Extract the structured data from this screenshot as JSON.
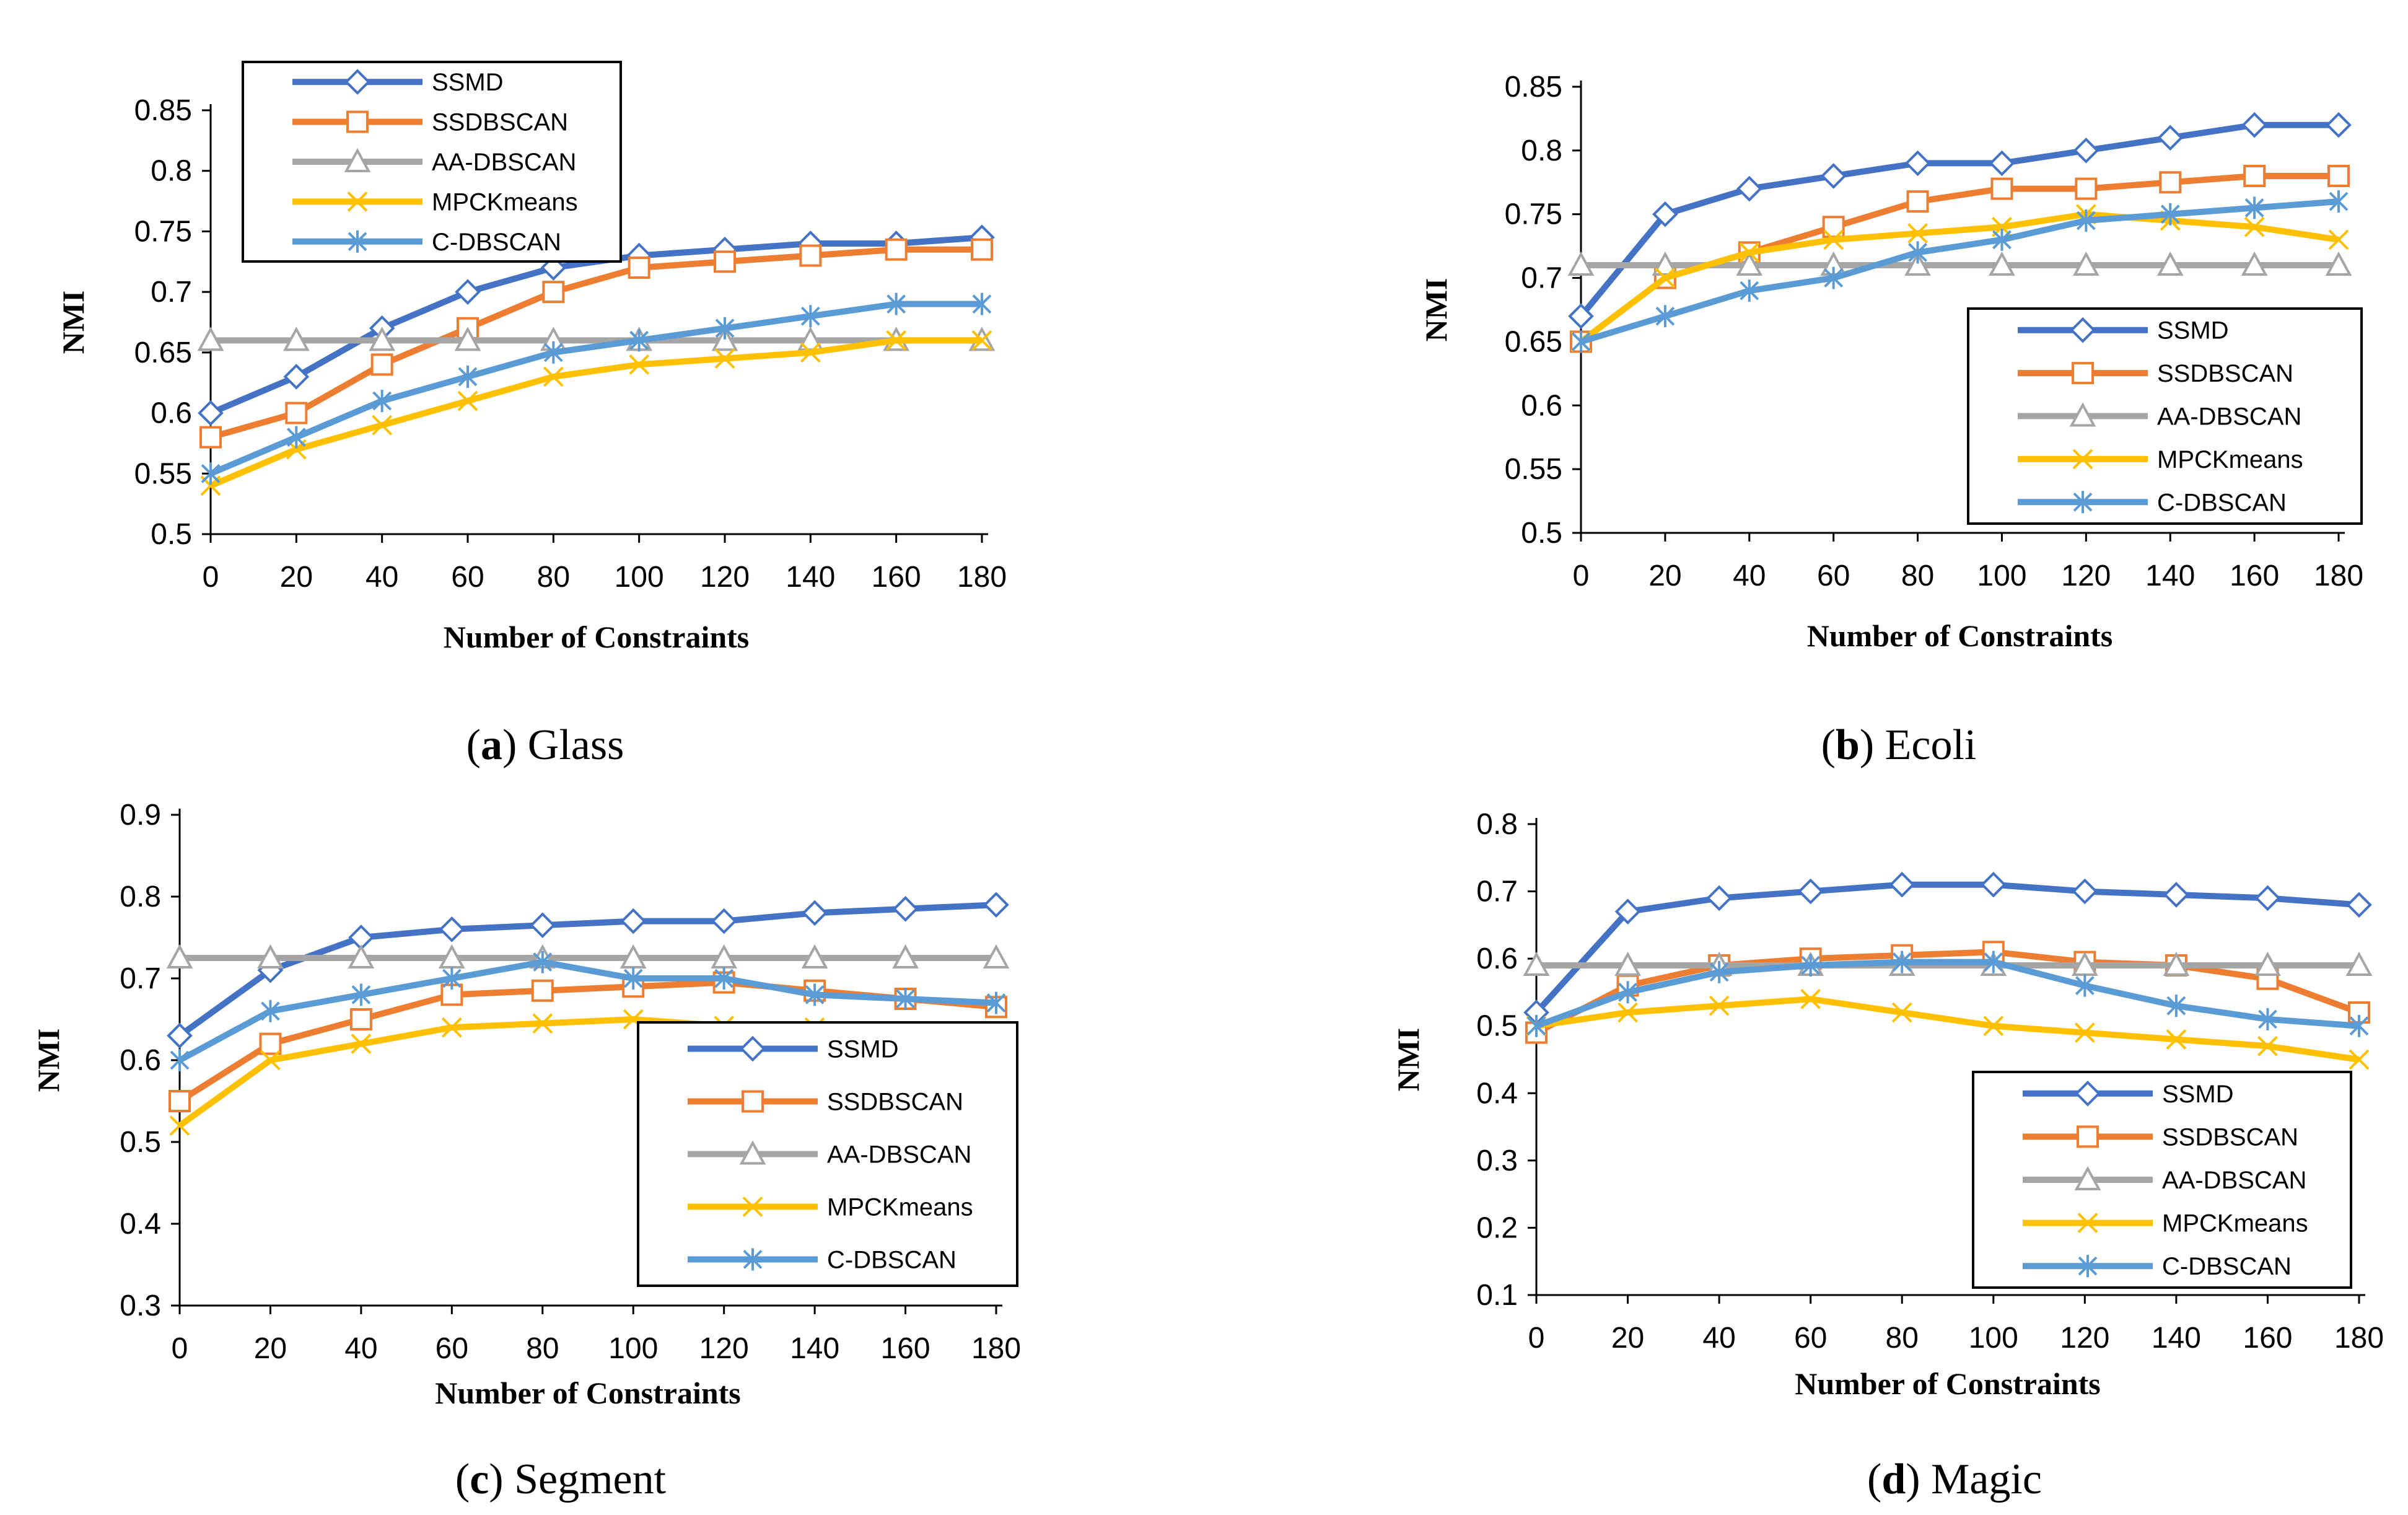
{
  "chart_data": [
    {
      "type": "line",
      "caption": {
        "letter": "a",
        "name": "Glass"
      },
      "xlabel": "Number of Constraints",
      "ylabel": "NMI",
      "x": [
        0,
        20,
        40,
        60,
        80,
        100,
        120,
        140,
        160,
        180
      ],
      "xticks": [
        "0",
        "20",
        "40",
        "60",
        "80",
        "100",
        "120",
        "140",
        "160",
        "180"
      ],
      "ylim": [
        0.5,
        0.85
      ],
      "yticks": [
        "0.5",
        "0.55",
        "0.6",
        "0.65",
        "0.7",
        "0.75",
        "0.8",
        "0.85"
      ],
      "legend": "top-left",
      "series": [
        {
          "name": "SSMD",
          "values": [
            0.6,
            0.63,
            0.67,
            0.7,
            0.72,
            0.73,
            0.735,
            0.74,
            0.74,
            0.745
          ]
        },
        {
          "name": "SSDBSCAN",
          "values": [
            0.58,
            0.6,
            0.64,
            0.67,
            0.7,
            0.72,
            0.725,
            0.73,
            0.735,
            0.735
          ]
        },
        {
          "name": "AA-DBSCAN",
          "values": [
            0.66,
            0.66,
            0.66,
            0.66,
            0.66,
            0.66,
            0.66,
            0.66,
            0.66,
            0.66
          ]
        },
        {
          "name": "MPCKmeans",
          "values": [
            0.54,
            0.57,
            0.59,
            0.61,
            0.63,
            0.64,
            0.645,
            0.65,
            0.66,
            0.66
          ]
        },
        {
          "name": "C-DBSCAN",
          "values": [
            0.55,
            0.58,
            0.61,
            0.63,
            0.65,
            0.66,
            0.67,
            0.68,
            0.69,
            0.69
          ]
        }
      ]
    },
    {
      "type": "line",
      "caption": {
        "letter": "b",
        "name": "Ecoli"
      },
      "xlabel": "Number of Constraints",
      "ylabel": "NMI",
      "x": [
        0,
        20,
        40,
        60,
        80,
        100,
        120,
        140,
        160,
        180
      ],
      "xticks": [
        "0",
        "20",
        "40",
        "60",
        "80",
        "100",
        "120",
        "140",
        "160",
        "180"
      ],
      "ylim": [
        0.5,
        0.85
      ],
      "yticks": [
        "0.5",
        "0.55",
        "0.6",
        "0.65",
        "0.7",
        "0.75",
        "0.8",
        "0.85"
      ],
      "legend": "bottom-right",
      "series": [
        {
          "name": "SSMD",
          "values": [
            0.67,
            0.75,
            0.77,
            0.78,
            0.79,
            0.79,
            0.8,
            0.81,
            0.82,
            0.82
          ]
        },
        {
          "name": "SSDBSCAN",
          "values": [
            0.65,
            0.7,
            0.72,
            0.74,
            0.76,
            0.77,
            0.77,
            0.775,
            0.78,
            0.78
          ]
        },
        {
          "name": "AA-DBSCAN",
          "values": [
            0.71,
            0.71,
            0.71,
            0.71,
            0.71,
            0.71,
            0.71,
            0.71,
            0.71,
            0.71
          ]
        },
        {
          "name": "MPCKmeans",
          "values": [
            0.65,
            0.7,
            0.72,
            0.73,
            0.735,
            0.74,
            0.75,
            0.745,
            0.74,
            0.73
          ]
        },
        {
          "name": "C-DBSCAN",
          "values": [
            0.65,
            0.67,
            0.69,
            0.7,
            0.72,
            0.73,
            0.745,
            0.75,
            0.755,
            0.76
          ]
        }
      ]
    },
    {
      "type": "line",
      "caption": {
        "letter": "c",
        "name": "Segment"
      },
      "xlabel": "Number of Constraints",
      "ylabel": "NMI",
      "x": [
        0,
        20,
        40,
        60,
        80,
        100,
        120,
        140,
        160,
        180
      ],
      "xticks": [
        "0",
        "20",
        "40",
        "60",
        "80",
        "100",
        "120",
        "140",
        "160",
        "180"
      ],
      "ylim": [
        0.3,
        0.9
      ],
      "yticks": [
        "0.3",
        "0.4",
        "0.5",
        "0.6",
        "0.7",
        "0.8",
        "0.9"
      ],
      "legend": "bottom-right",
      "series": [
        {
          "name": "SSMD",
          "values": [
            0.63,
            0.71,
            0.75,
            0.76,
            0.765,
            0.77,
            0.77,
            0.78,
            0.785,
            0.79
          ]
        },
        {
          "name": "SSDBSCAN",
          "values": [
            0.55,
            0.62,
            0.65,
            0.68,
            0.685,
            0.69,
            0.695,
            0.685,
            0.675,
            0.665
          ]
        },
        {
          "name": "AA-DBSCAN",
          "values": [
            0.725,
            0.725,
            0.725,
            0.725,
            0.725,
            0.725,
            0.725,
            0.725,
            0.725,
            0.725
          ]
        },
        {
          "name": "MPCKmeans",
          "values": [
            0.52,
            0.6,
            0.62,
            0.64,
            0.645,
            0.65,
            0.642,
            0.64,
            0.62,
            0.6
          ]
        },
        {
          "name": "C-DBSCAN",
          "values": [
            0.6,
            0.66,
            0.68,
            0.7,
            0.72,
            0.7,
            0.7,
            0.68,
            0.675,
            0.67
          ]
        }
      ]
    },
    {
      "type": "line",
      "caption": {
        "letter": "d",
        "name": "Magic"
      },
      "xlabel": "Number of Constraints",
      "ylabel": "NMI",
      "x": [
        0,
        20,
        40,
        60,
        80,
        100,
        120,
        140,
        160,
        180
      ],
      "xticks": [
        "0",
        "20",
        "40",
        "60",
        "80",
        "100",
        "120",
        "140",
        "160",
        "180"
      ],
      "ylim": [
        0.1,
        0.8
      ],
      "yticks": [
        "0.1",
        "0.2",
        "0.3",
        "0.4",
        "0.5",
        "0.6",
        "0.7",
        "0.8"
      ],
      "legend": "bottom-right",
      "series": [
        {
          "name": "SSMD",
          "values": [
            0.52,
            0.67,
            0.69,
            0.7,
            0.71,
            0.71,
            0.7,
            0.695,
            0.69,
            0.68
          ]
        },
        {
          "name": "SSDBSCAN",
          "values": [
            0.49,
            0.56,
            0.59,
            0.6,
            0.605,
            0.61,
            0.595,
            0.59,
            0.57,
            0.52
          ]
        },
        {
          "name": "AA-DBSCAN",
          "values": [
            0.59,
            0.59,
            0.59,
            0.59,
            0.59,
            0.59,
            0.59,
            0.59,
            0.59,
            0.59
          ]
        },
        {
          "name": "MPCKmeans",
          "values": [
            0.5,
            0.52,
            0.53,
            0.54,
            0.52,
            0.5,
            0.49,
            0.48,
            0.47,
            0.45
          ]
        },
        {
          "name": "C-DBSCAN",
          "values": [
            0.5,
            0.55,
            0.58,
            0.59,
            0.595,
            0.595,
            0.56,
            0.53,
            0.51,
            0.5
          ]
        }
      ]
    }
  ],
  "series_styles": [
    {
      "color": "#4472C4",
      "marker": "diamond"
    },
    {
      "color": "#ED7D31",
      "marker": "square"
    },
    {
      "color": "#A5A5A5",
      "marker": "triangle"
    },
    {
      "color": "#FFC000",
      "marker": "x"
    },
    {
      "color": "#5B9BD5",
      "marker": "asterisk"
    }
  ]
}
